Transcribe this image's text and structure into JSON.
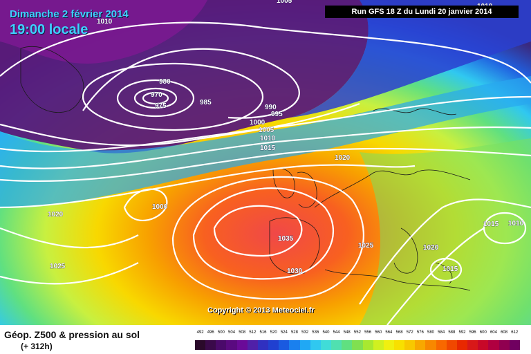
{
  "header": {
    "date": "Dimanche 2 février 2014",
    "time": "19:00 locale",
    "run": "Run GFS 18 Z du Lundi 20 janvier 2014"
  },
  "map": {
    "copyright": "Copyright © 2013 Meteociel.fr",
    "isobar_labels": [
      "1005",
      "1010",
      "1010",
      "980",
      "970",
      "975",
      "985",
      "990",
      "995",
      "1000",
      "1005",
      "1010",
      "1015",
      "1020",
      "1020",
      "1000",
      "1020",
      "1025",
      "1035",
      "1025",
      "1030",
      "1020",
      "1015",
      "1015",
      "1010"
    ]
  },
  "legend": {
    "title": "Géop. Z500 & pression au sol",
    "subtitle": "(+ 312h)",
    "scale_values": [
      "492",
      "496",
      "500",
      "504",
      "508",
      "512",
      "516",
      "520",
      "524",
      "528",
      "532",
      "536",
      "540",
      "544",
      "548",
      "552",
      "556",
      "560",
      "564",
      "568",
      "572",
      "576",
      "580",
      "584",
      "588",
      "592",
      "596",
      "600",
      "604",
      "608",
      "612"
    ],
    "scale_colors": [
      "#2a0a2a",
      "#3a0a4a",
      "#4a0a6a",
      "#5a0a80",
      "#6a0a98",
      "#5020a8",
      "#3030c0",
      "#2040d0",
      "#1a5ae0",
      "#1a80ee",
      "#20a8f4",
      "#30c8f0",
      "#40dcd8",
      "#50e0b0",
      "#60e080",
      "#80e050",
      "#a8e830",
      "#d0f020",
      "#f0f010",
      "#f8e000",
      "#f8c800",
      "#f8a800",
      "#f88800",
      "#f86800",
      "#f04800",
      "#e82800",
      "#d81818",
      "#c80828",
      "#b00040",
      "#900050",
      "#700060"
    ]
  }
}
